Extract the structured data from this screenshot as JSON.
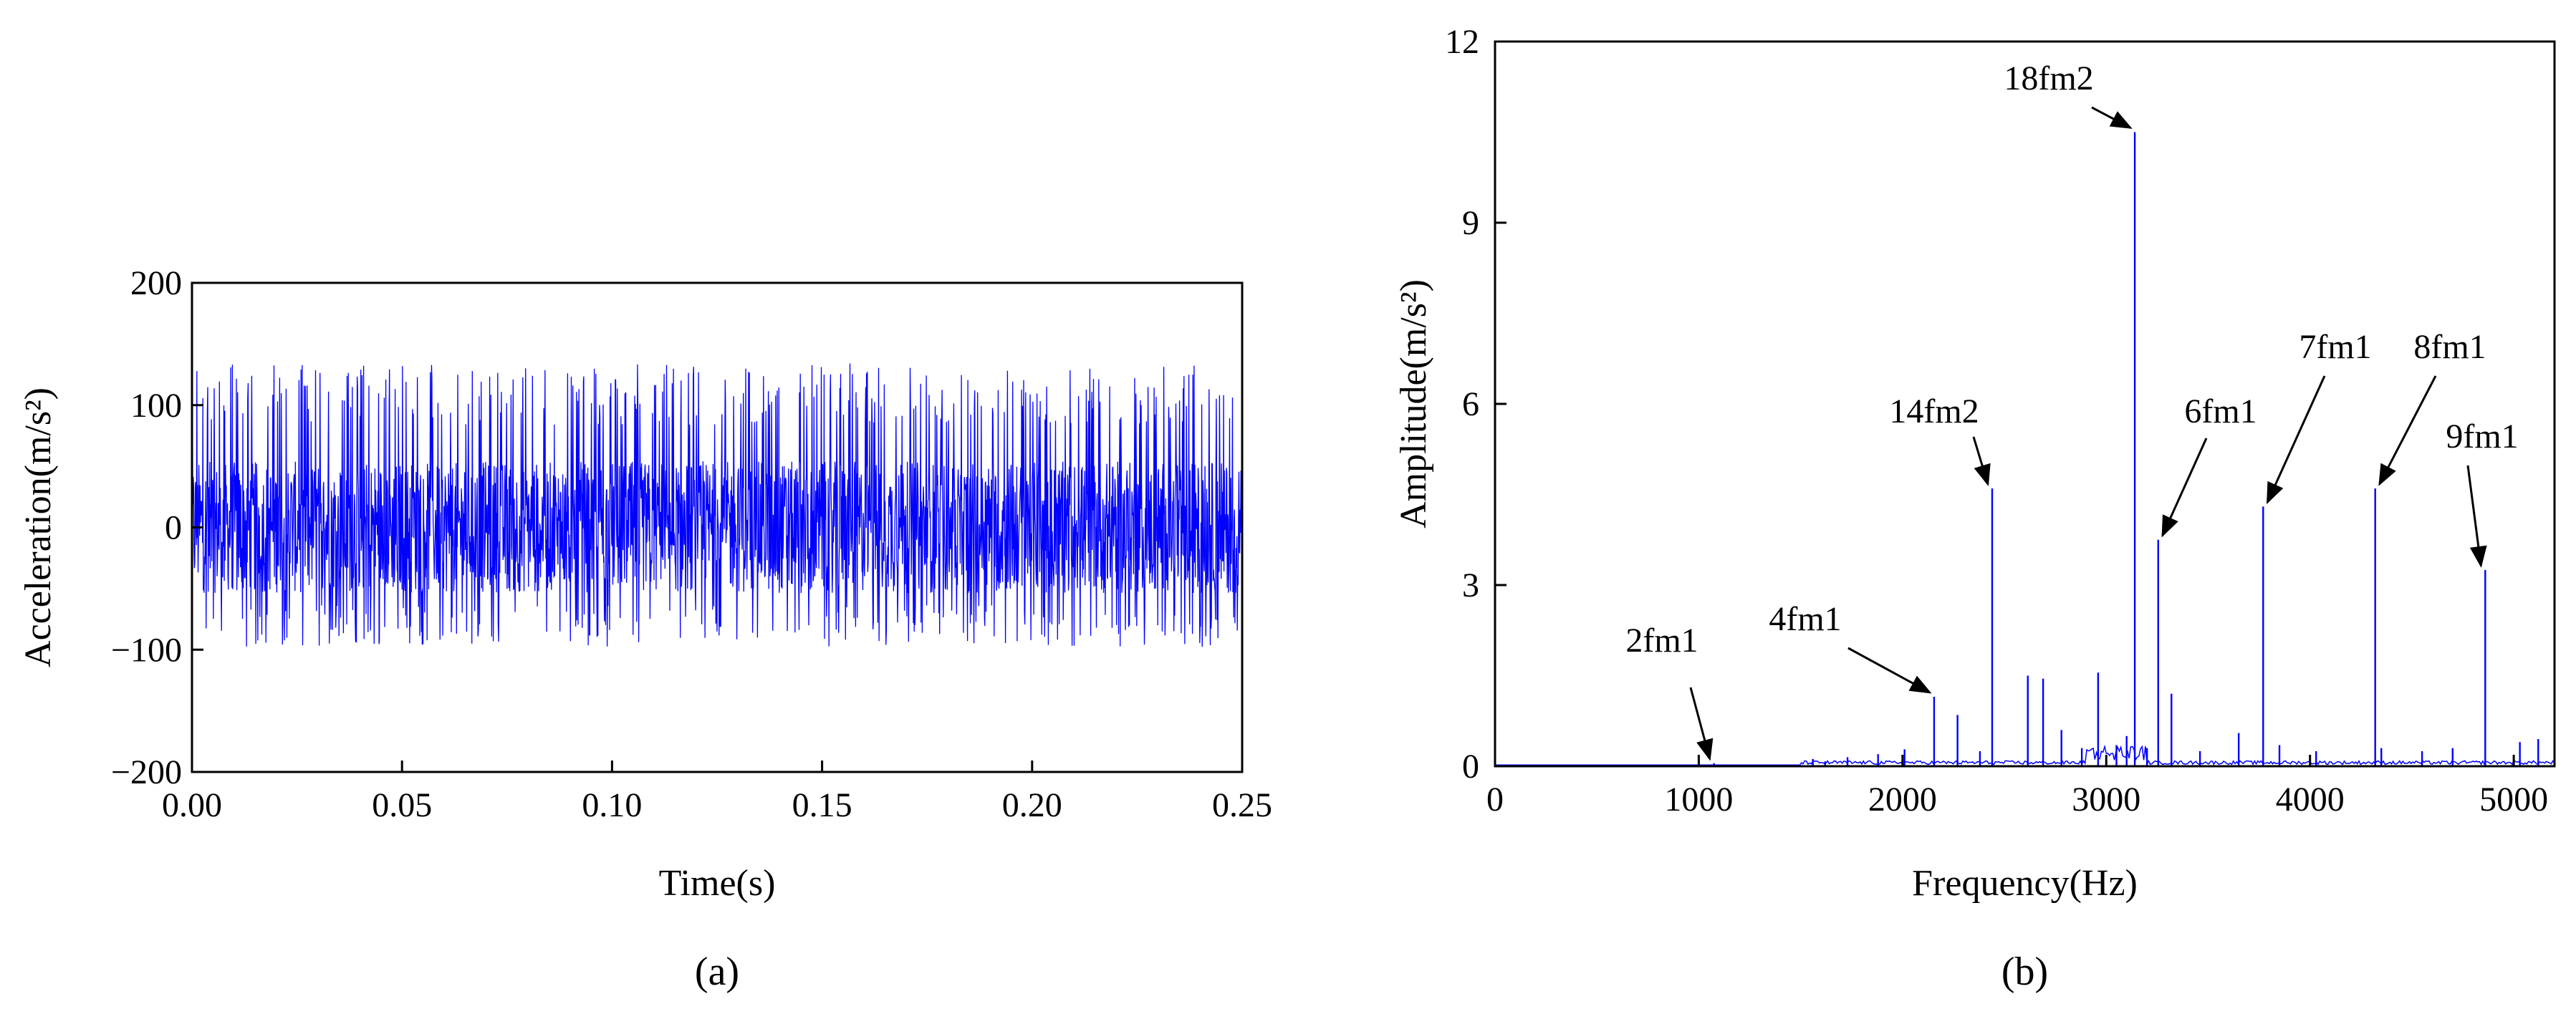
{
  "chart_data": [
    {
      "type": "line",
      "panel_label": "(a)",
      "xlabel": "Time(s)",
      "ylabel": "Acceleration(m/s²)",
      "xlim": [
        0,
        0.25
      ],
      "ylim": [
        -200,
        200
      ],
      "xticks": [
        0,
        0.05,
        0.1,
        0.15,
        0.2,
        0.25
      ],
      "xtick_labels": [
        "0.00",
        "0.05",
        "0.10",
        "0.15",
        "0.20",
        "0.25"
      ],
      "yticks": [
        -200,
        -100,
        0,
        100,
        200
      ],
      "ytick_labels": [
        "−200",
        "−100",
        "0",
        "100",
        "200"
      ],
      "grid": false,
      "color": "#0000ff",
      "signal": {
        "description_values": {
          "duration": 0.25,
          "typical_positive_peak": 120,
          "max_positive_peak": 135,
          "typical_negative_peak": -85,
          "min_negative_peak": -110,
          "dense_band_amplitude": 60
        }
      }
    },
    {
      "type": "line",
      "panel_label": "(b)",
      "xlabel": "Frequency(Hz)",
      "ylabel": "Amplitude(m/s²)",
      "xlim": [
        0,
        5200
      ],
      "ylim": [
        0,
        12
      ],
      "xticks": [
        0,
        1000,
        2000,
        3000,
        4000,
        5000
      ],
      "xtick_labels": [
        "0",
        "1000",
        "2000",
        "3000",
        "4000",
        "5000"
      ],
      "yticks": [
        0,
        3,
        6,
        9,
        12
      ],
      "ytick_labels": [
        "0",
        "3",
        "6",
        "9",
        "12"
      ],
      "grid": false,
      "color": "#0000ff",
      "peaks": [
        {
          "x": 1075,
          "y": 0.05
        },
        {
          "x": 1560,
          "y": 0.12
        },
        {
          "x": 1620,
          "y": 0.08
        },
        {
          "x": 1730,
          "y": 0.15
        },
        {
          "x": 1880,
          "y": 0.2
        },
        {
          "x": 2010,
          "y": 0.28
        },
        {
          "x": 2155,
          "y": 1.15
        },
        {
          "x": 2270,
          "y": 0.85
        },
        {
          "x": 2380,
          "y": 0.25
        },
        {
          "x": 2440,
          "y": 4.6
        },
        {
          "x": 2615,
          "y": 1.5
        },
        {
          "x": 2690,
          "y": 1.45
        },
        {
          "x": 2780,
          "y": 0.6
        },
        {
          "x": 2880,
          "y": 0.3
        },
        {
          "x": 2960,
          "y": 1.55
        },
        {
          "x": 3050,
          "y": 0.35
        },
        {
          "x": 3100,
          "y": 0.5
        },
        {
          "x": 3140,
          "y": 10.5
        },
        {
          "x": 3200,
          "y": 0.3
        },
        {
          "x": 3255,
          "y": 3.75
        },
        {
          "x": 3320,
          "y": 1.2
        },
        {
          "x": 3460,
          "y": 0.25
        },
        {
          "x": 3650,
          "y": 0.55
        },
        {
          "x": 3770,
          "y": 4.3
        },
        {
          "x": 3850,
          "y": 0.35
        },
        {
          "x": 4030,
          "y": 0.25
        },
        {
          "x": 4320,
          "y": 4.6
        },
        {
          "x": 4350,
          "y": 0.3
        },
        {
          "x": 4550,
          "y": 0.25
        },
        {
          "x": 4700,
          "y": 0.3
        },
        {
          "x": 4860,
          "y": 3.25
        },
        {
          "x": 5030,
          "y": 0.4
        },
        {
          "x": 5120,
          "y": 0.45
        }
      ],
      "annotations": [
        {
          "text": "2fm1",
          "x": 1075,
          "y": 0.05
        },
        {
          "text": "4fm1",
          "x": 2155,
          "y": 1.15
        },
        {
          "text": "14fm2",
          "x": 2440,
          "y": 4.6
        },
        {
          "text": "18fm2",
          "x": 3140,
          "y": 10.5
        },
        {
          "text": "6fm1",
          "x": 3255,
          "y": 3.75
        },
        {
          "text": "7fm1",
          "x": 3770,
          "y": 4.3
        },
        {
          "text": "8fm1",
          "x": 4320,
          "y": 4.6
        },
        {
          "text": "9fm1",
          "x": 4860,
          "y": 3.25
        }
      ]
    }
  ]
}
